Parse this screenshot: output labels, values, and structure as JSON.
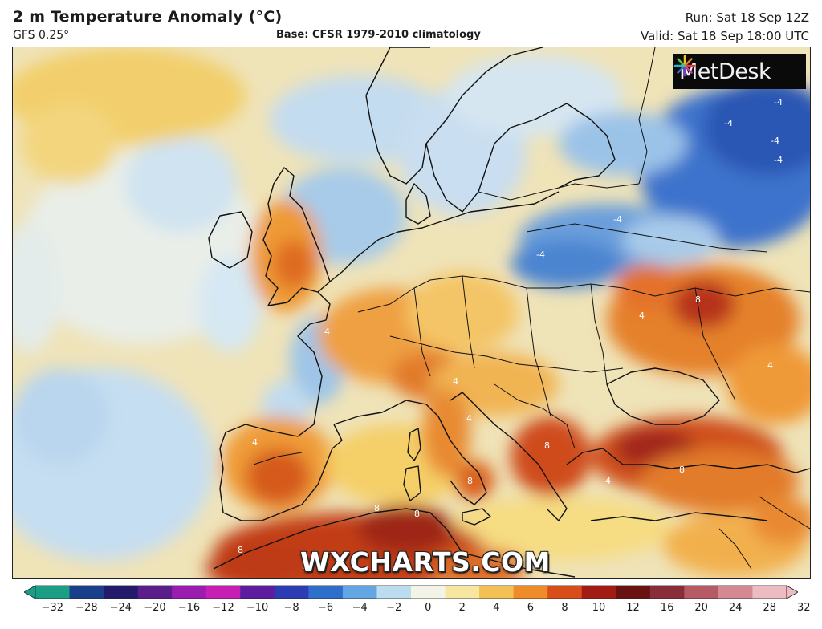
{
  "header": {
    "title": "2 m Temperature Anomaly (°C)",
    "model": "GFS 0.25°",
    "base": "Base: CFSR 1979-2010 climatology",
    "run": "Run: Sat 18 Sep 12Z",
    "valid": "Valid: Sat 18 Sep 18:00 UTC"
  },
  "branding": {
    "logo_text": "MetDesk",
    "watermark": "WXCHARTS.COM"
  },
  "colorbar": {
    "ticks": [
      "−32",
      "−28",
      "−24",
      "−20",
      "−16",
      "−12",
      "−10",
      "−8",
      "−6",
      "−4",
      "−2",
      "0",
      "2",
      "4",
      "6",
      "8",
      "10",
      "12",
      "16",
      "20",
      "24",
      "28",
      "32"
    ],
    "colors": [
      "#1a9e86",
      "#1a3f8a",
      "#231a6b",
      "#5a1d8a",
      "#9b1db0",
      "#c71fb4",
      "#5c1e9e",
      "#2c3cb3",
      "#2f6fcc",
      "#63a6e3",
      "#bcdcf0",
      "#f3f3e8",
      "#f7e6a0",
      "#f3c056",
      "#ef8c2a",
      "#d84e1a",
      "#a31c14",
      "#6a1212",
      "#8a2d3a",
      "#b65a66",
      "#d48a93",
      "#ecbcc2"
    ]
  },
  "map": {
    "contour_labels": [
      "-4",
      "-4",
      "-4",
      "-4",
      "-4",
      "-4",
      "4",
      "4",
      "4",
      "4",
      "4",
      "4",
      "4",
      "8",
      "8",
      "8",
      "8",
      "8",
      "8",
      "8",
      "8"
    ],
    "colors": {
      "ocean_neutral": "#eef0e4",
      "cool_blue": "#8fbde6",
      "cold_blue": "#2f63c4",
      "warm_yellow": "#f3cf6a",
      "warm_orange": "#ee9a35",
      "hot_red": "#cf4b1c",
      "very_hot": "#8e1f14",
      "coast_line": "#111111"
    }
  }
}
